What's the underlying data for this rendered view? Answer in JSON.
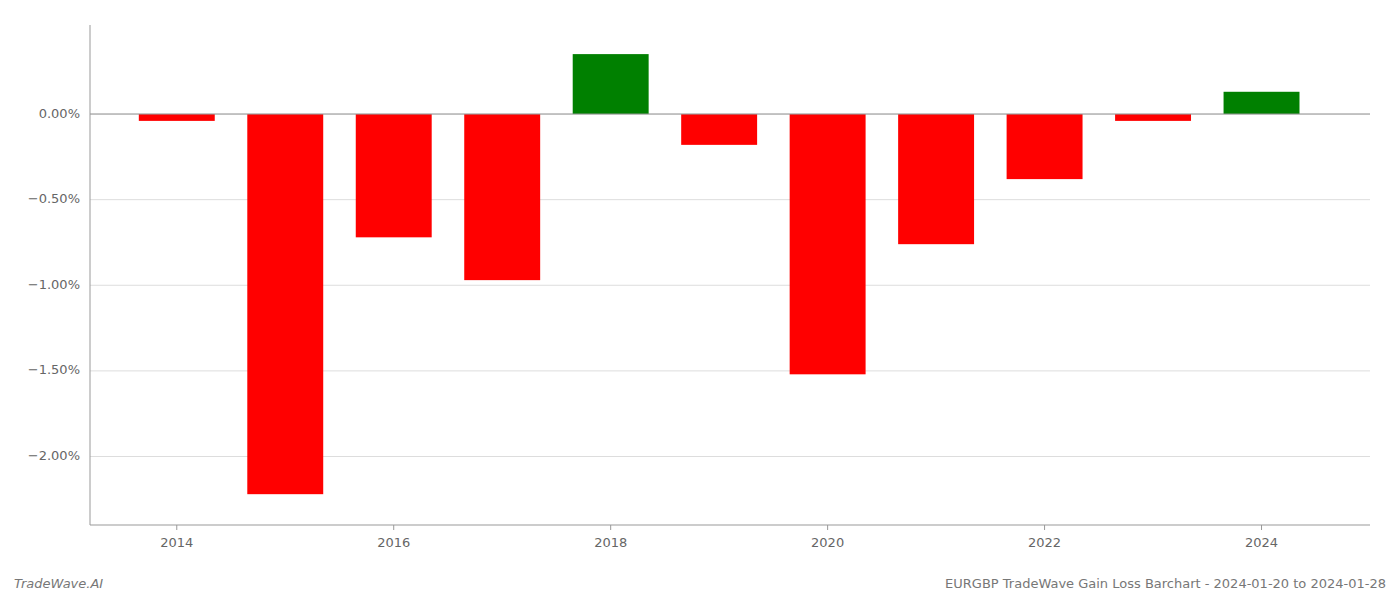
{
  "chart_data": {
    "type": "bar",
    "title": "EURGBP TradeWave Gain Loss Barchart - 2024-01-20 to 2024-01-28",
    "annotations": [
      "TradeWave.AI"
    ],
    "x": [
      2014,
      2015,
      2016,
      2017,
      2018,
      2019,
      2020,
      2021,
      2022,
      2023,
      2024
    ],
    "values": [
      -0.04,
      -2.22,
      -0.72,
      -0.97,
      0.35,
      -0.18,
      -1.52,
      -0.76,
      -0.38,
      -0.04,
      0.13
    ],
    "colors": [
      "#ff0000",
      "#ff0000",
      "#ff0000",
      "#ff0000",
      "#008000",
      "#ff0000",
      "#ff0000",
      "#ff0000",
      "#ff0000",
      "#ff0000",
      "#008000"
    ],
    "xlim": [
      2013.2,
      2025.0
    ],
    "xticks": [
      2014,
      2016,
      2018,
      2020,
      2022,
      2024
    ],
    "ylim": [
      -2.4,
      0.52
    ],
    "yticks": [
      {
        "value": 0.0,
        "label": "0.00%"
      },
      {
        "value": -0.5,
        "label": "−0.50%"
      },
      {
        "value": -1.0,
        "label": "−1.00%"
      },
      {
        "value": -1.5,
        "label": "−1.50%"
      },
      {
        "value": -2.0,
        "label": "−2.00%"
      }
    ],
    "grid": true
  }
}
